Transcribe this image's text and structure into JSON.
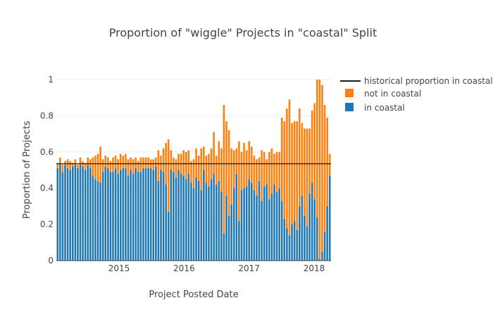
{
  "chart_data": {
    "type": "bar",
    "stacked": true,
    "title": "Proportion of \"wiggle\" Projects in \"coastal\" Split",
    "xlabel": "Project Posted Date",
    "ylabel": "Proportion of Projects",
    "ylim": [
      0,
      1
    ],
    "y_ticks": [
      "0",
      "0.2",
      "0.4",
      "0.6",
      "0.8",
      "1"
    ],
    "y_tick_values": [
      0,
      0.2,
      0.4,
      0.6,
      0.8,
      1
    ],
    "x_ticks": [
      "2015",
      "2016",
      "2017",
      "2018"
    ],
    "x_tick_months": [
      12,
      24,
      36,
      48
    ],
    "x_start": "2014-01",
    "grid": true,
    "legend_position": "top-right",
    "historical_proportion": 0.535,
    "colors": {
      "in": "#1f77b4",
      "not": "#ff7f0e",
      "line": "#1a1a1a"
    },
    "legend": {
      "line_label": "historical proportion in coastal",
      "not_label": "not in coastal",
      "in_label": "in coastal"
    },
    "series_in_coastal": [
      0.51,
      0.54,
      0.49,
      0.53,
      0.51,
      0.5,
      0.52,
      0.53,
      0.51,
      0.53,
      0.52,
      0.5,
      0.53,
      0.51,
      0.47,
      0.45,
      0.44,
      0.43,
      0.49,
      0.52,
      0.51,
      0.49,
      0.49,
      0.51,
      0.48,
      0.5,
      0.51,
      0.51,
      0.47,
      0.5,
      0.48,
      0.51,
      0.49,
      0.49,
      0.51,
      0.51,
      0.51,
      0.51,
      0.5,
      0.52,
      0.44,
      0.5,
      0.49,
      0.42,
      0.27,
      0.5,
      0.49,
      0.46,
      0.5,
      0.48,
      0.47,
      0.45,
      0.48,
      0.43,
      0.4,
      0.46,
      0.44,
      0.39,
      0.5,
      0.43,
      0.41,
      0.45,
      0.48,
      0.42,
      0.44,
      0.38,
      0.15,
      0.36,
      0.25,
      0.31,
      0.4,
      0.48,
      0.22,
      0.39,
      0.4,
      0.41,
      0.45,
      0.43,
      0.39,
      0.36,
      0.44,
      0.33,
      0.41,
      0.42,
      0.34,
      0.37,
      0.42,
      0.38,
      0.4,
      0.33,
      0.23,
      0.18,
      0.14,
      0.2,
      0.22,
      0.17,
      0.3,
      0.36,
      0.25,
      0.19,
      0.37,
      0.43,
      0.34,
      0.24,
      0.01,
      0.05,
      0.16,
      0.3,
      0.47
    ],
    "series_not_in_coastal": [
      0.03,
      0.03,
      0.04,
      0.02,
      0.05,
      0.05,
      0.02,
      0.03,
      0.02,
      0.04,
      0.03,
      0.04,
      0.04,
      0.05,
      0.1,
      0.13,
      0.15,
      0.2,
      0.07,
      0.06,
      0.06,
      0.06,
      0.08,
      0.07,
      0.08,
      0.09,
      0.07,
      0.08,
      0.09,
      0.07,
      0.08,
      0.06,
      0.06,
      0.08,
      0.06,
      0.06,
      0.06,
      0.05,
      0.06,
      0.05,
      0.17,
      0.08,
      0.13,
      0.23,
      0.4,
      0.11,
      0.08,
      0.1,
      0.09,
      0.11,
      0.14,
      0.15,
      0.13,
      0.12,
      0.16,
      0.16,
      0.14,
      0.23,
      0.13,
      0.15,
      0.18,
      0.17,
      0.23,
      0.16,
      0.22,
      0.24,
      0.71,
      0.41,
      0.47,
      0.31,
      0.21,
      0.14,
      0.44,
      0.21,
      0.25,
      0.2,
      0.21,
      0.2,
      0.19,
      0.2,
      0.13,
      0.28,
      0.19,
      0.14,
      0.26,
      0.25,
      0.17,
      0.22,
      0.2,
      0.46,
      0.54,
      0.66,
      0.75,
      0.56,
      0.55,
      0.6,
      0.54,
      0.4,
      0.48,
      0.54,
      0.36,
      0.4,
      0.53,
      0.76,
      0.99,
      0.92,
      0.7,
      0.49,
      0.12
    ]
  }
}
